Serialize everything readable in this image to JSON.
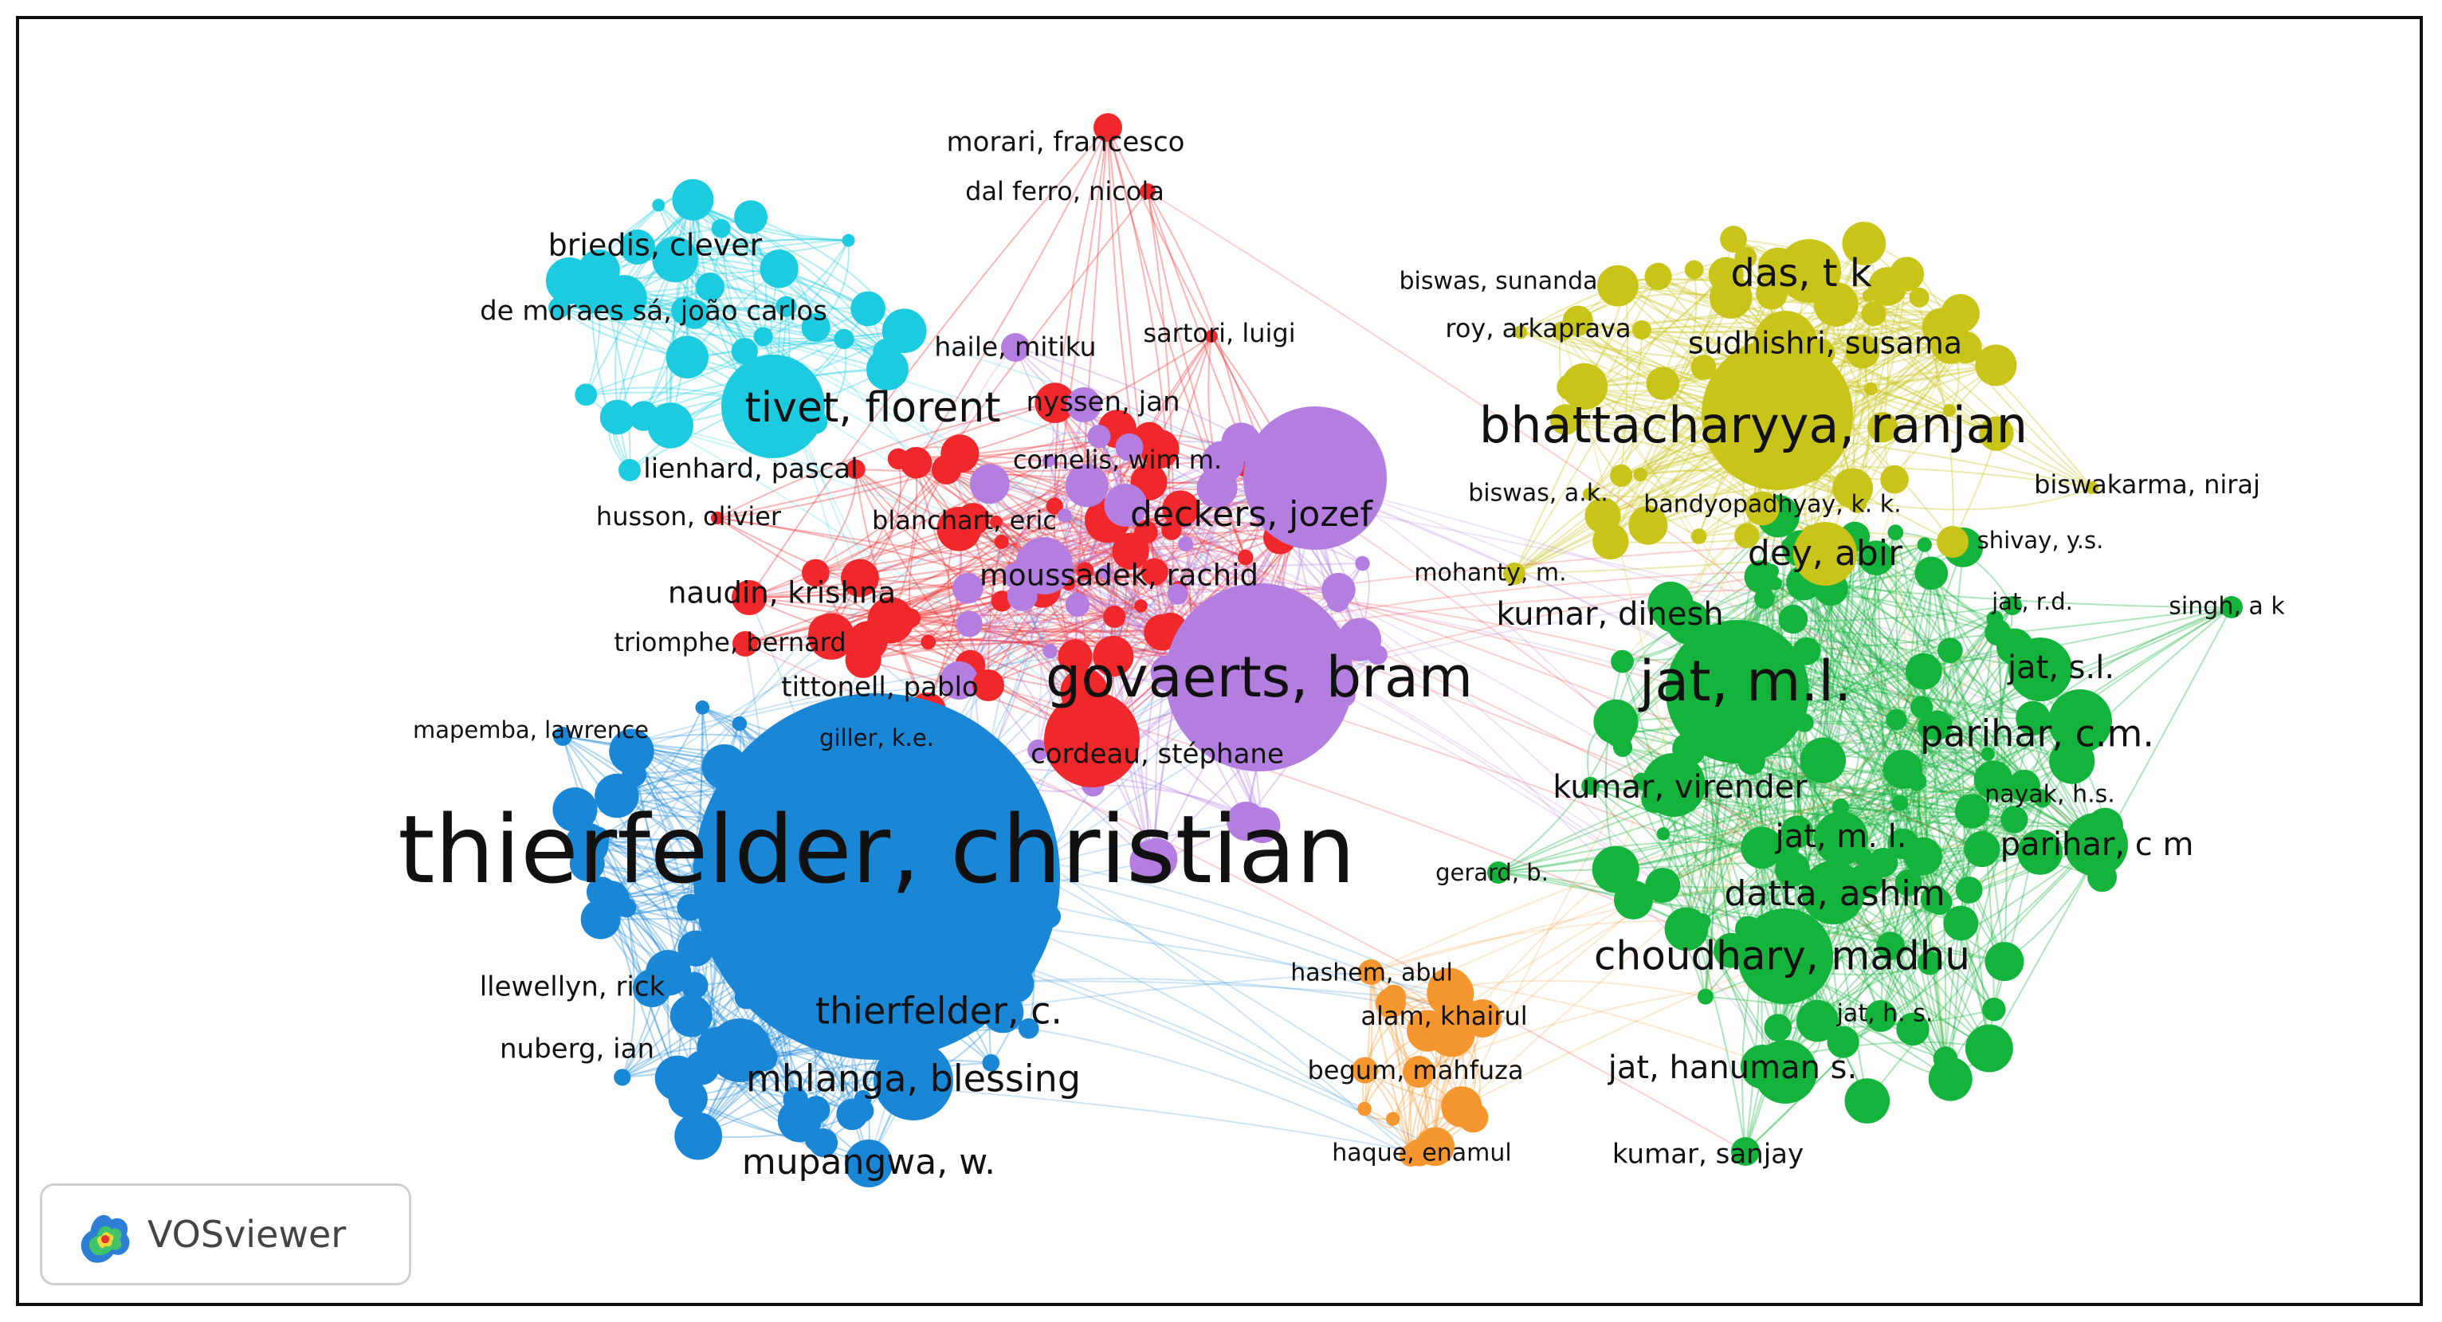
{
  "brand": {
    "name": "VOSviewer"
  },
  "cluster_colors": {
    "blue": "#1a86d6",
    "red": "#f0282c",
    "purple": "#b47ee0",
    "green": "#14b33c",
    "yellow": "#c9c419",
    "cyan": "#1ccbe0",
    "orange": "#f5962e"
  },
  "nodes": [
    {
      "label": "thierfelder, christian",
      "cluster": "blue"
    },
    {
      "label": "thierfelder, c.",
      "cluster": "blue"
    },
    {
      "label": "mhlanga, blessing",
      "cluster": "blue"
    },
    {
      "label": "mupangwa, w.",
      "cluster": "blue"
    },
    {
      "label": "llewellyn, rick",
      "cluster": "blue"
    },
    {
      "label": "nuberg, ian",
      "cluster": "blue"
    },
    {
      "label": "mapemba, lawrence",
      "cluster": "blue"
    },
    {
      "label": "giller, k.e.",
      "cluster": "blue"
    },
    {
      "label": "govaerts, bram",
      "cluster": "purple"
    },
    {
      "label": "deckers, jozef",
      "cluster": "purple"
    },
    {
      "label": "moussadek, rachid",
      "cluster": "purple"
    },
    {
      "label": "haile, mitiku",
      "cluster": "purple"
    },
    {
      "label": "nyssen, jan",
      "cluster": "purple"
    },
    {
      "label": "cornelis, wim m.",
      "cluster": "purple"
    },
    {
      "label": "cordeau, stéphane",
      "cluster": "red"
    },
    {
      "label": "tittonell, pablo",
      "cluster": "red"
    },
    {
      "label": "naudin, krishna",
      "cluster": "red"
    },
    {
      "label": "triomphe, bernard",
      "cluster": "red"
    },
    {
      "label": "husson, olivier",
      "cluster": "red"
    },
    {
      "label": "blanchart, eric",
      "cluster": "red"
    },
    {
      "label": "sartori, luigi",
      "cluster": "red"
    },
    {
      "label": "morari, francesco",
      "cluster": "red"
    },
    {
      "label": "dal ferro, nicola",
      "cluster": "red"
    },
    {
      "label": "tivet, florent",
      "cluster": "cyan"
    },
    {
      "label": "briedis, clever",
      "cluster": "cyan"
    },
    {
      "label": "de moraes sá, joão carlos",
      "cluster": "cyan"
    },
    {
      "label": "lienhard, pascal",
      "cluster": "cyan"
    },
    {
      "label": "bhattacharyya, ranjan",
      "cluster": "yellow"
    },
    {
      "label": "das, t k",
      "cluster": "yellow"
    },
    {
      "label": "sudhishri, susama",
      "cluster": "yellow"
    },
    {
      "label": "biswas, sunanda",
      "cluster": "yellow"
    },
    {
      "label": "roy, arkaprava",
      "cluster": "yellow"
    },
    {
      "label": "dey, abir",
      "cluster": "yellow"
    },
    {
      "label": "biswas, a.k.",
      "cluster": "yellow"
    },
    {
      "label": "bandyopadhyay, k. k.",
      "cluster": "yellow"
    },
    {
      "label": "biswakarma, niraj",
      "cluster": "yellow"
    },
    {
      "label": "shivay, y.s.",
      "cluster": "yellow"
    },
    {
      "label": "mohanty, m.",
      "cluster": "yellow"
    },
    {
      "label": "jat, m.l.",
      "cluster": "green"
    },
    {
      "label": "kumar, dinesh",
      "cluster": "green"
    },
    {
      "label": "jat, s.l.",
      "cluster": "green"
    },
    {
      "label": "parihar, c.m.",
      "cluster": "green"
    },
    {
      "label": "kumar, virender",
      "cluster": "green"
    },
    {
      "label": "jat, m. l.",
      "cluster": "green"
    },
    {
      "label": "parihar, c m",
      "cluster": "green"
    },
    {
      "label": "nayak, h.s.",
      "cluster": "green"
    },
    {
      "label": "datta, ashim",
      "cluster": "green"
    },
    {
      "label": "choudhary, madhu",
      "cluster": "green"
    },
    {
      "label": "jat, h. s.",
      "cluster": "green"
    },
    {
      "label": "jat, hanuman s.",
      "cluster": "green"
    },
    {
      "label": "kumar, sanjay",
      "cluster": "green"
    },
    {
      "label": "jat, r.d.",
      "cluster": "green"
    },
    {
      "label": "singh, a k",
      "cluster": "green"
    },
    {
      "label": "gerard, b.",
      "cluster": "green"
    },
    {
      "label": "hashem, abul",
      "cluster": "orange"
    },
    {
      "label": "alam, khairul",
      "cluster": "orange"
    },
    {
      "label": "begum, mahfuza",
      "cluster": "orange"
    },
    {
      "label": "haque, enamul",
      "cluster": "orange"
    }
  ]
}
